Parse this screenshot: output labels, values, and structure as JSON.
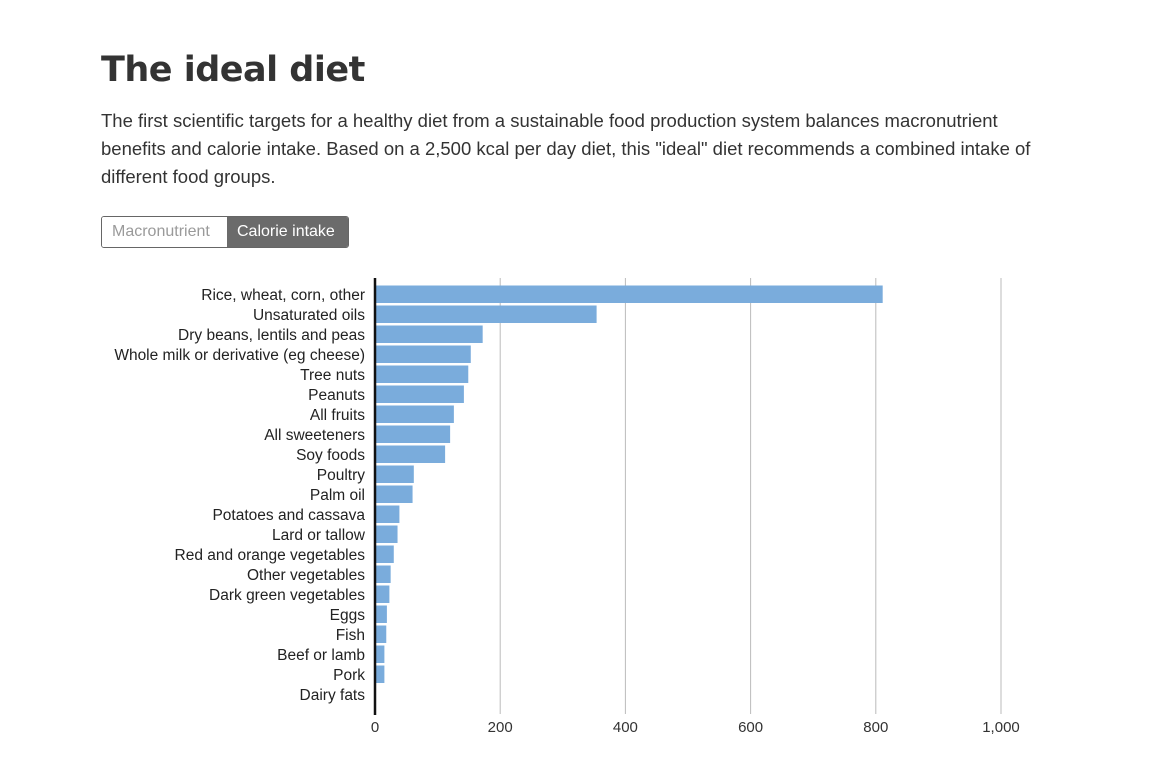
{
  "title": "The ideal diet",
  "subtitle": "The first scientific targets for a healthy diet from a sustainable food production system balances macronutrient benefits and calorie intake. Based on a 2,500 kcal per day diet, this \"ideal\" diet recommends a combined intake of different food groups.",
  "toggle": {
    "options": [
      "Macronutrient",
      "Calorie intake"
    ],
    "selected": "Calorie intake"
  },
  "colors": {
    "bar": "#7aacdc",
    "grid": "#bbbbbb",
    "axis": "#111111"
  },
  "chart_data": {
    "type": "bar",
    "orientation": "horizontal",
    "categories": [
      "Rice, wheat, corn, other",
      "Unsaturated oils",
      "Dry beans, lentils and peas",
      "Whole milk or derivative (eg cheese)",
      "Tree nuts",
      "Peanuts",
      "All fruits",
      "All sweeteners",
      "Soy foods",
      "Poultry",
      "Palm oil",
      "Potatoes and cassava",
      "Lard or tallow",
      "Red and orange vegetables",
      "Other vegetables",
      "Dark green vegetables",
      "Eggs",
      "Fish",
      "Beef or lamb",
      "Pork",
      "Dairy fats"
    ],
    "values": [
      811,
      354,
      172,
      153,
      149,
      142,
      126,
      120,
      112,
      62,
      60,
      39,
      36,
      30,
      25,
      23,
      19,
      18,
      15,
      15,
      0
    ],
    "xlim": [
      0,
      1000
    ],
    "xticks": [
      0,
      200,
      400,
      600,
      800,
      1000
    ],
    "xtick_labels": [
      "0",
      "200",
      "400",
      "600",
      "800",
      "1,000"
    ],
    "grid": true
  }
}
